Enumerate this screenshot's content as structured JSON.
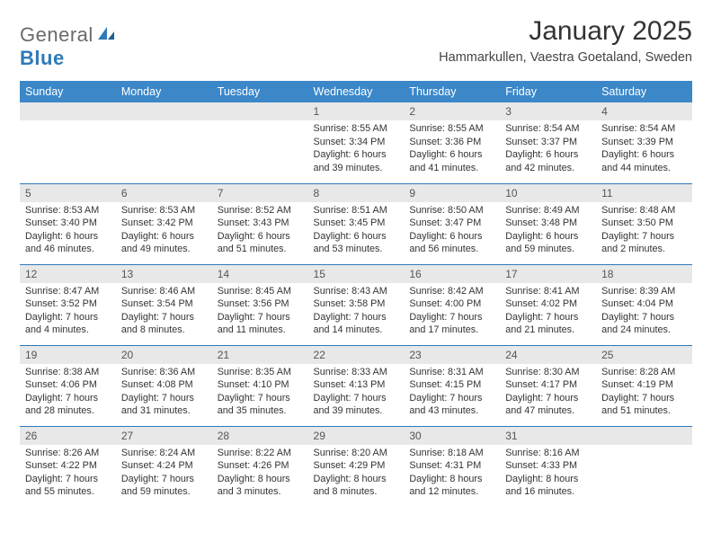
{
  "brand": {
    "general": "General",
    "blue": "Blue"
  },
  "title": "January 2025",
  "subtitle": "Hammarkullen, Vaestra Goetaland, Sweden",
  "colors": {
    "header_bg": "#3b87c8",
    "daynum_bg": "#e8e8e8",
    "rule": "#2f79b9",
    "text": "#333333",
    "logo_gray": "#6a6a6a",
    "logo_blue": "#2f79b9"
  },
  "day_labels": [
    "Sunday",
    "Monday",
    "Tuesday",
    "Wednesday",
    "Thursday",
    "Friday",
    "Saturday"
  ],
  "weeks": [
    [
      {
        "n": "",
        "sr": "",
        "ss": "",
        "dl": ""
      },
      {
        "n": "",
        "sr": "",
        "ss": "",
        "dl": ""
      },
      {
        "n": "",
        "sr": "",
        "ss": "",
        "dl": ""
      },
      {
        "n": "1",
        "sr": "Sunrise: 8:55 AM",
        "ss": "Sunset: 3:34 PM",
        "dl": "Daylight: 6 hours and 39 minutes."
      },
      {
        "n": "2",
        "sr": "Sunrise: 8:55 AM",
        "ss": "Sunset: 3:36 PM",
        "dl": "Daylight: 6 hours and 41 minutes."
      },
      {
        "n": "3",
        "sr": "Sunrise: 8:54 AM",
        "ss": "Sunset: 3:37 PM",
        "dl": "Daylight: 6 hours and 42 minutes."
      },
      {
        "n": "4",
        "sr": "Sunrise: 8:54 AM",
        "ss": "Sunset: 3:39 PM",
        "dl": "Daylight: 6 hours and 44 minutes."
      }
    ],
    [
      {
        "n": "5",
        "sr": "Sunrise: 8:53 AM",
        "ss": "Sunset: 3:40 PM",
        "dl": "Daylight: 6 hours and 46 minutes."
      },
      {
        "n": "6",
        "sr": "Sunrise: 8:53 AM",
        "ss": "Sunset: 3:42 PM",
        "dl": "Daylight: 6 hours and 49 minutes."
      },
      {
        "n": "7",
        "sr": "Sunrise: 8:52 AM",
        "ss": "Sunset: 3:43 PM",
        "dl": "Daylight: 6 hours and 51 minutes."
      },
      {
        "n": "8",
        "sr": "Sunrise: 8:51 AM",
        "ss": "Sunset: 3:45 PM",
        "dl": "Daylight: 6 hours and 53 minutes."
      },
      {
        "n": "9",
        "sr": "Sunrise: 8:50 AM",
        "ss": "Sunset: 3:47 PM",
        "dl": "Daylight: 6 hours and 56 minutes."
      },
      {
        "n": "10",
        "sr": "Sunrise: 8:49 AM",
        "ss": "Sunset: 3:48 PM",
        "dl": "Daylight: 6 hours and 59 minutes."
      },
      {
        "n": "11",
        "sr": "Sunrise: 8:48 AM",
        "ss": "Sunset: 3:50 PM",
        "dl": "Daylight: 7 hours and 2 minutes."
      }
    ],
    [
      {
        "n": "12",
        "sr": "Sunrise: 8:47 AM",
        "ss": "Sunset: 3:52 PM",
        "dl": "Daylight: 7 hours and 4 minutes."
      },
      {
        "n": "13",
        "sr": "Sunrise: 8:46 AM",
        "ss": "Sunset: 3:54 PM",
        "dl": "Daylight: 7 hours and 8 minutes."
      },
      {
        "n": "14",
        "sr": "Sunrise: 8:45 AM",
        "ss": "Sunset: 3:56 PM",
        "dl": "Daylight: 7 hours and 11 minutes."
      },
      {
        "n": "15",
        "sr": "Sunrise: 8:43 AM",
        "ss": "Sunset: 3:58 PM",
        "dl": "Daylight: 7 hours and 14 minutes."
      },
      {
        "n": "16",
        "sr": "Sunrise: 8:42 AM",
        "ss": "Sunset: 4:00 PM",
        "dl": "Daylight: 7 hours and 17 minutes."
      },
      {
        "n": "17",
        "sr": "Sunrise: 8:41 AM",
        "ss": "Sunset: 4:02 PM",
        "dl": "Daylight: 7 hours and 21 minutes."
      },
      {
        "n": "18",
        "sr": "Sunrise: 8:39 AM",
        "ss": "Sunset: 4:04 PM",
        "dl": "Daylight: 7 hours and 24 minutes."
      }
    ],
    [
      {
        "n": "19",
        "sr": "Sunrise: 8:38 AM",
        "ss": "Sunset: 4:06 PM",
        "dl": "Daylight: 7 hours and 28 minutes."
      },
      {
        "n": "20",
        "sr": "Sunrise: 8:36 AM",
        "ss": "Sunset: 4:08 PM",
        "dl": "Daylight: 7 hours and 31 minutes."
      },
      {
        "n": "21",
        "sr": "Sunrise: 8:35 AM",
        "ss": "Sunset: 4:10 PM",
        "dl": "Daylight: 7 hours and 35 minutes."
      },
      {
        "n": "22",
        "sr": "Sunrise: 8:33 AM",
        "ss": "Sunset: 4:13 PM",
        "dl": "Daylight: 7 hours and 39 minutes."
      },
      {
        "n": "23",
        "sr": "Sunrise: 8:31 AM",
        "ss": "Sunset: 4:15 PM",
        "dl": "Daylight: 7 hours and 43 minutes."
      },
      {
        "n": "24",
        "sr": "Sunrise: 8:30 AM",
        "ss": "Sunset: 4:17 PM",
        "dl": "Daylight: 7 hours and 47 minutes."
      },
      {
        "n": "25",
        "sr": "Sunrise: 8:28 AM",
        "ss": "Sunset: 4:19 PM",
        "dl": "Daylight: 7 hours and 51 minutes."
      }
    ],
    [
      {
        "n": "26",
        "sr": "Sunrise: 8:26 AM",
        "ss": "Sunset: 4:22 PM",
        "dl": "Daylight: 7 hours and 55 minutes."
      },
      {
        "n": "27",
        "sr": "Sunrise: 8:24 AM",
        "ss": "Sunset: 4:24 PM",
        "dl": "Daylight: 7 hours and 59 minutes."
      },
      {
        "n": "28",
        "sr": "Sunrise: 8:22 AM",
        "ss": "Sunset: 4:26 PM",
        "dl": "Daylight: 8 hours and 3 minutes."
      },
      {
        "n": "29",
        "sr": "Sunrise: 8:20 AM",
        "ss": "Sunset: 4:29 PM",
        "dl": "Daylight: 8 hours and 8 minutes."
      },
      {
        "n": "30",
        "sr": "Sunrise: 8:18 AM",
        "ss": "Sunset: 4:31 PM",
        "dl": "Daylight: 8 hours and 12 minutes."
      },
      {
        "n": "31",
        "sr": "Sunrise: 8:16 AM",
        "ss": "Sunset: 4:33 PM",
        "dl": "Daylight: 8 hours and 16 minutes."
      },
      {
        "n": "",
        "sr": "",
        "ss": "",
        "dl": ""
      }
    ]
  ]
}
